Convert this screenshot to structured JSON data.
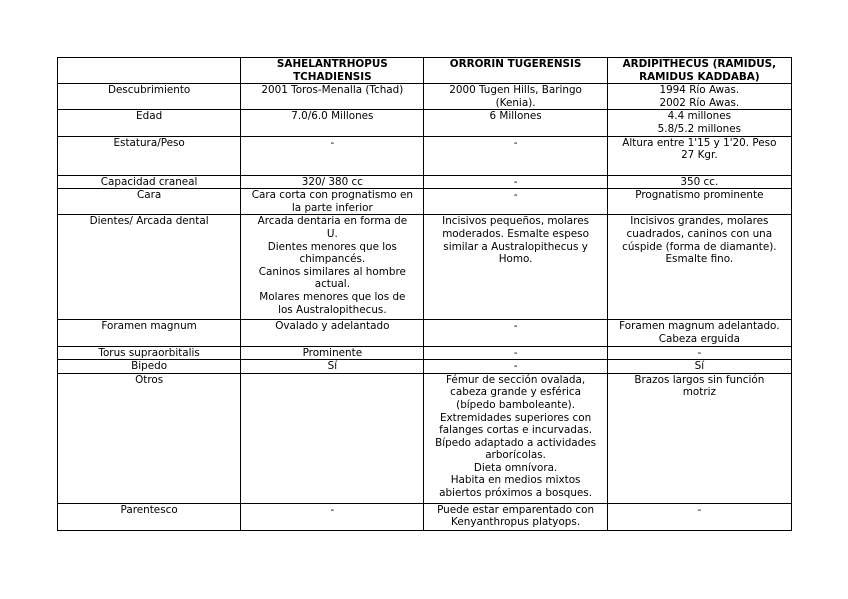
{
  "table": {
    "headers": [
      "",
      "SAHELANTRHOPUS\nTCHADIENSIS",
      "ORRORIN TUGERENSIS",
      "ARDIPITHECUS (RAMIDUS,\nRAMIDUS KADDABA)"
    ],
    "rows": [
      [
        "Descubrimiento",
        "2001 Toros-Menalla (Tchad)",
        "2000 Tugen Hills, Baringo\n(Kenia).",
        "1994 Río Awas.\n2002 Río Awas."
      ],
      [
        "Edad",
        "7.0/6.0 Millones",
        "6 Millones",
        "4.4 millones\n5.8/5.2 millones"
      ],
      [
        "Estatura/Peso",
        "-",
        "-",
        "Altura entre 1'15 y 1'20. Peso\n27 Kgr."
      ],
      [
        "Capacidad craneal",
        "320/ 380 cc",
        "-",
        "350 cc."
      ],
      [
        "Cara",
        "Cara corta con prognatismo en\nla parte inferior",
        "-",
        "Prognatismo prominente"
      ],
      [
        "Dientes/ Arcada dental",
        "Arcada dentaria en forma de\nU.\nDientes menores que los\nchimpancés.\nCaninos similares al hombre\nactual.\nMolares menores que los de\nlos Australopithecus.",
        "Incisivos pequeños, molares\nmoderados. Esmalte espeso\nsimilar a Australopithecus y\nHomo.",
        "Incisivos grandes, molares\ncuadrados, caninos con una\ncúspide (forma de diamante).\nEsmalte fino."
      ],
      [
        "Foramen magnum",
        "Ovalado y adelantado",
        "-",
        "Foramen magnum adelantado.\nCabeza erguida"
      ],
      [
        "Torus supraorbitalis",
        "Prominente",
        "-",
        "-"
      ],
      [
        "Bipedo",
        "Sí",
        "-",
        "Sí"
      ],
      [
        "Otros",
        "",
        "Fémur de sección ovalada,\ncabeza grande y esférica\n(bípedo bamboleante).\nExtremidades superiores con\nfalanges cortas e incurvadas.\nBípedo adaptado a actividades\narborícolas.\nDieta omnívora.\nHabita en medios mixtos\nabiertos próximos a bosques.",
        "Brazos largos sin función\nmotriz"
      ],
      [
        "Parentesco",
        "-",
        "Puede estar emparentado con\nKenyanthropus platyops.",
        "-"
      ]
    ]
  }
}
